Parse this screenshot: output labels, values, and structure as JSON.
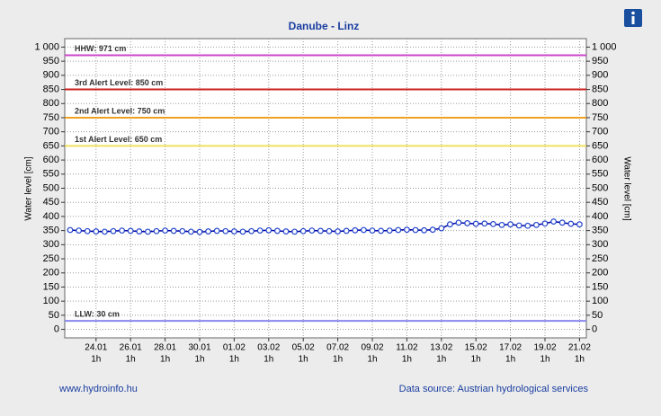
{
  "chart_data": {
    "type": "line",
    "title": "Danube - Linz",
    "ylabel": "Water level [cm]",
    "categories": [
      null,
      null,
      null,
      "24.01",
      null,
      null,
      null,
      "26.01",
      null,
      null,
      null,
      "28.01",
      null,
      null,
      null,
      "30.01",
      null,
      null,
      null,
      "01.02",
      null,
      null,
      null,
      "03.02",
      null,
      null,
      null,
      "05.02",
      null,
      null,
      null,
      "07.02",
      null,
      null,
      null,
      "09.02",
      null,
      null,
      null,
      "11.02",
      null,
      null,
      null,
      "13.02",
      null,
      null,
      null,
      "15.02",
      null,
      null,
      null,
      "17.02",
      null,
      null,
      null,
      "19.02",
      null,
      null,
      null,
      "21.02"
    ],
    "x_sublabel": "1h",
    "series": [
      {
        "name": "Water level",
        "color": "#0000a0",
        "values": [
          352,
          350,
          348,
          347,
          346,
          348,
          350,
          349,
          347,
          346,
          348,
          350,
          349,
          348,
          346,
          345,
          347,
          349,
          348,
          347,
          346,
          348,
          350,
          351,
          349,
          347,
          346,
          348,
          350,
          349,
          348,
          347,
          349,
          351,
          352,
          350,
          349,
          350,
          352,
          353,
          352,
          351,
          353,
          358,
          372,
          378,
          376,
          374,
          375,
          373,
          370,
          372,
          368,
          367,
          370,
          375,
          382,
          378,
          374,
          372
        ]
      }
    ],
    "ylim": [
      -30,
      1030
    ],
    "yticks": [
      0,
      50,
      100,
      150,
      200,
      250,
      300,
      350,
      400,
      450,
      500,
      550,
      600,
      650,
      700,
      750,
      800,
      850,
      900,
      950,
      {
        "value": 1000,
        "label": "1 000"
      }
    ],
    "grid": true,
    "reference_lines": [
      {
        "label": "HHW: 971 cm",
        "value": 971,
        "color": "#cc44cc"
      },
      {
        "label": "3rd Alert Level: 850 cm",
        "value": 850,
        "color": "#cc2222"
      },
      {
        "label": "2nd Alert Level: 750 cm",
        "value": 750,
        "color": "#f0a020"
      },
      {
        "label": "1st Alert Level: 650 cm",
        "value": 650,
        "color": "#f0e060"
      },
      {
        "label": "LLW: 30 cm",
        "value": 30,
        "color": "#8888ee"
      }
    ]
  },
  "footer": {
    "link": "www.hydroinfo.hu",
    "source": "Data source: Austrian hydrological services"
  }
}
